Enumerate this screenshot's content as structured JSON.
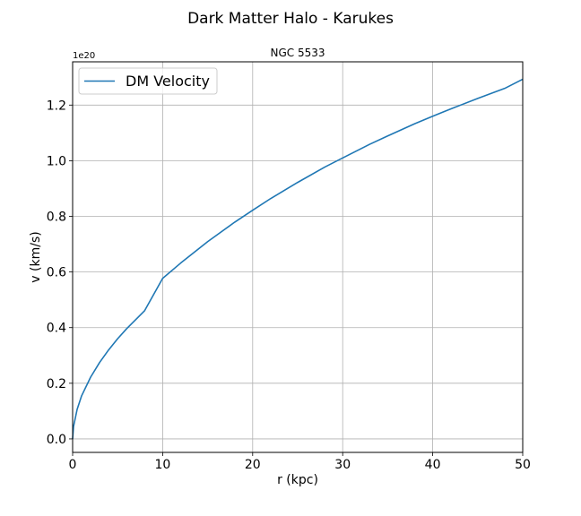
{
  "figure": {
    "suptitle": "Dark Matter Halo - Karukes"
  },
  "chart_data": {
    "type": "line",
    "title": "NGC 5533",
    "xlabel": "r (kpc)",
    "ylabel": "v (km/s)",
    "y_offset_label": "1e20",
    "xlim": [
      0,
      50
    ],
    "ylim": [
      -0.0485,
      1.3555
    ],
    "x_ticks": [
      0,
      10,
      20,
      30,
      40,
      50
    ],
    "x_tick_labels": [
      "0",
      "10",
      "20",
      "30",
      "40",
      "50"
    ],
    "y_ticks": [
      0.0,
      0.2,
      0.4,
      0.6,
      0.8,
      1.0,
      1.2
    ],
    "y_tick_labels": [
      "0.0",
      "0.2",
      "0.4",
      "0.6",
      "0.8",
      "1.0",
      "1.2"
    ],
    "grid": true,
    "legend_position": "top-left",
    "series": [
      {
        "name": "DM Velocity",
        "color": "#1f77b4",
        "x": [
          0.0,
          0.1,
          0.5,
          1,
          2,
          3,
          4,
          5,
          6,
          8,
          10,
          12,
          15,
          18,
          20,
          22,
          25,
          28,
          30,
          33,
          35,
          38,
          40,
          42,
          45,
          48,
          50
        ],
        "y": [
          0.0,
          0.044,
          0.106,
          0.155,
          0.222,
          0.275,
          0.32,
          0.36,
          0.396,
          0.461,
          0.577,
          0.632,
          0.709,
          0.779,
          0.822,
          0.864,
          0.922,
          0.977,
          1.01,
          1.059,
          1.089,
          1.133,
          1.16,
          1.186,
          1.224,
          1.26,
          1.293
        ]
      }
    ]
  }
}
